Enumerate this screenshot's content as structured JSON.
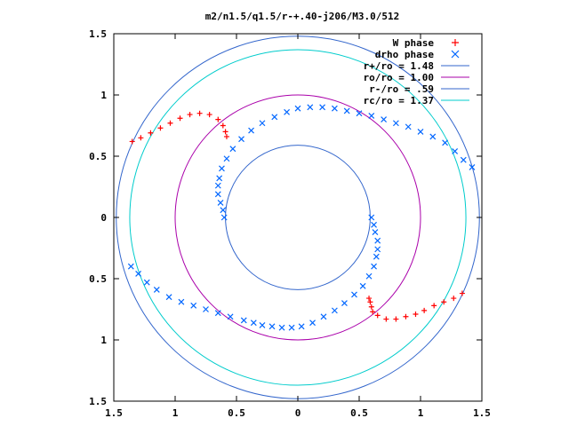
{
  "chart_data": {
    "type": "scatter",
    "title": "m2/n1.5/q1.5/r-+.40-j206/M3.0/512",
    "xlabel": "",
    "ylabel": "",
    "xlim": [
      -1.5,
      1.5
    ],
    "ylim": [
      -1.5,
      1.5
    ],
    "grid": false,
    "legend_placement": "top-right",
    "x_ticks": [
      -1.5,
      -1,
      -0.5,
      0,
      0.5,
      1,
      1.5
    ],
    "x_tick_labels": [
      "1.5",
      "1",
      "0.5",
      "0",
      "0.5",
      "1",
      "1.5"
    ],
    "y_ticks": [
      1.5,
      1,
      0.5,
      0,
      -0.5,
      -1,
      -1.5
    ],
    "y_tick_labels": [
      "1.5",
      "1",
      "0.5",
      "0",
      "0.5",
      "1",
      "1.5"
    ],
    "series": [
      {
        "name": "W phase",
        "marker": "+",
        "color": "#ff0000",
        "points": [
          [
            -1.35,
            0.62
          ],
          [
            -1.28,
            0.65
          ],
          [
            -1.2,
            0.69
          ],
          [
            -1.12,
            0.73
          ],
          [
            -1.04,
            0.77
          ],
          [
            -0.96,
            0.81
          ],
          [
            -0.88,
            0.84
          ],
          [
            -0.8,
            0.85
          ],
          [
            -0.72,
            0.84
          ],
          [
            -0.65,
            0.8
          ],
          [
            -0.61,
            0.75
          ],
          [
            -0.59,
            0.7
          ],
          [
            -0.58,
            0.66
          ],
          [
            1.34,
            -0.62
          ],
          [
            1.27,
            -0.66
          ],
          [
            1.19,
            -0.69
          ],
          [
            1.11,
            -0.72
          ],
          [
            1.03,
            -0.76
          ],
          [
            0.96,
            -0.79
          ],
          [
            0.88,
            -0.81
          ],
          [
            0.8,
            -0.83
          ],
          [
            0.72,
            -0.83
          ],
          [
            0.65,
            -0.8
          ],
          [
            0.61,
            -0.77
          ],
          [
            0.6,
            -0.73
          ],
          [
            0.59,
            -0.69
          ],
          [
            0.58,
            -0.66
          ]
        ]
      },
      {
        "name": "drho phase",
        "marker": "x",
        "color": "#0066ff",
        "points": [
          [
            -0.6,
            0.0
          ],
          [
            -0.61,
            0.06
          ],
          [
            -0.63,
            0.12
          ],
          [
            -0.65,
            0.19
          ],
          [
            -0.65,
            0.26
          ],
          [
            -0.64,
            0.32
          ],
          [
            -0.62,
            0.4
          ],
          [
            -0.58,
            0.48
          ],
          [
            -0.53,
            0.56
          ],
          [
            -0.46,
            0.64
          ],
          [
            -0.38,
            0.71
          ],
          [
            -0.29,
            0.77
          ],
          [
            -0.19,
            0.82
          ],
          [
            -0.09,
            0.86
          ],
          [
            0.0,
            0.89
          ],
          [
            0.1,
            0.9
          ],
          [
            0.2,
            0.9
          ],
          [
            0.3,
            0.89
          ],
          [
            0.4,
            0.87
          ],
          [
            0.5,
            0.85
          ],
          [
            0.6,
            0.83
          ],
          [
            0.7,
            0.8
          ],
          [
            0.8,
            0.77
          ],
          [
            0.9,
            0.74
          ],
          [
            1.0,
            0.7
          ],
          [
            1.1,
            0.66
          ],
          [
            1.2,
            0.61
          ],
          [
            1.28,
            0.54
          ],
          [
            1.35,
            0.47
          ],
          [
            1.42,
            0.41
          ],
          [
            0.6,
            0.0
          ],
          [
            0.62,
            -0.06
          ],
          [
            0.63,
            -0.12
          ],
          [
            0.65,
            -0.19
          ],
          [
            0.65,
            -0.26
          ],
          [
            0.64,
            -0.32
          ],
          [
            0.62,
            -0.4
          ],
          [
            0.58,
            -0.48
          ],
          [
            0.53,
            -0.56
          ],
          [
            0.46,
            -0.63
          ],
          [
            0.38,
            -0.7
          ],
          [
            0.3,
            -0.76
          ],
          [
            0.21,
            -0.81
          ],
          [
            0.12,
            -0.86
          ],
          [
            0.03,
            -0.89
          ],
          [
            -0.05,
            -0.9
          ],
          [
            -0.13,
            -0.9
          ],
          [
            -0.21,
            -0.89
          ],
          [
            -0.29,
            -0.88
          ],
          [
            -0.36,
            -0.86
          ],
          [
            -0.44,
            -0.84
          ],
          [
            -0.55,
            -0.81
          ],
          [
            -0.65,
            -0.78
          ],
          [
            -0.75,
            -0.75
          ],
          [
            -0.85,
            -0.72
          ],
          [
            -0.95,
            -0.69
          ],
          [
            -1.05,
            -0.65
          ],
          [
            -1.15,
            -0.59
          ],
          [
            -1.23,
            -0.53
          ],
          [
            -1.3,
            -0.46
          ],
          [
            -1.36,
            -0.4
          ]
        ]
      },
      {
        "name": "r+/ro = 1.48",
        "type": "circle",
        "radius": 1.48,
        "color": "#3366cc"
      },
      {
        "name": "ro/ro = 1.00",
        "type": "circle",
        "radius": 1.0,
        "color": "#aa00aa"
      },
      {
        "name": "r-/ro = .59",
        "type": "circle",
        "radius": 0.59,
        "color": "#3366cc"
      },
      {
        "name": "rc/ro = 1.37",
        "type": "circle",
        "radius": 1.37,
        "color": "#00cccc"
      }
    ]
  }
}
